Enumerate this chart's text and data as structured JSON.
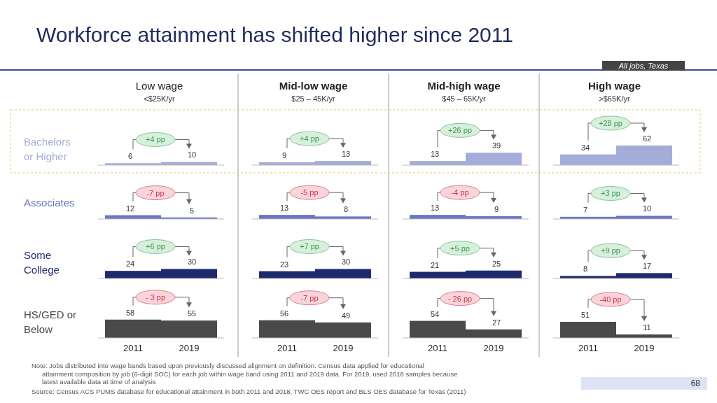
{
  "chart_data": [
    {
      "type": "other",
      "title": "Workforce attainment has shifted higher since 2011",
      "annotations": [
        "All jobs, Texas",
        "Note: Jobs distributed into wage bands based upon previously discussed alignment on definition. Census data applied for educational attainment composition by job (6-digit SOC) for each job within wage band using 2011 and 2019 data. For 2019, used 2018 samples because latest available data at time of analysis",
        "Source: Census ACS PUMS database for educational attainment in both 2011 and 2018, TWC OES report and BLS OES database for Texas (2011)",
        "68"
      ]
    },
    {
      "type": "bar",
      "title": "Low wage",
      "subtitle": "<$25K/yr",
      "ylabel": "Bachelors or Higher",
      "values": [
        6,
        10
      ],
      "color": "#a4acda",
      "data_labels": true,
      "annotations": [
        "+4 pp"
      ]
    },
    {
      "type": "bar",
      "title": "Mid-low wage",
      "subtitle": "$25 – 45K/yr",
      "values": [
        9,
        13
      ],
      "color": "#a4acda",
      "data_labels": true,
      "annotations": [
        "+4 pp"
      ]
    },
    {
      "type": "bar",
      "title": "Mid-high wage",
      "subtitle": "$45 – 65K/yr",
      "values": [
        13,
        39
      ],
      "color": "#a4acda",
      "data_labels": true,
      "annotations": [
        "+26 pp"
      ]
    },
    {
      "type": "bar",
      "title": "High wage",
      "subtitle": ">$65K/yr",
      "values": [
        34,
        62
      ],
      "color": "#a4acda",
      "data_labels": true,
      "annotations": [
        "+28 pp"
      ]
    },
    {
      "type": "bar",
      "ylabel": "Associates",
      "values": [
        12,
        5
      ],
      "color": "#6b77c3",
      "data_labels": true,
      "annotations": [
        "-7 pp"
      ]
    },
    {
      "type": "bar",
      "values": [
        13,
        8
      ],
      "color": "#6b77c3",
      "data_labels": true,
      "annotations": [
        "-5 pp"
      ]
    },
    {
      "type": "bar",
      "values": [
        13,
        9
      ],
      "color": "#6b77c3",
      "data_labels": true,
      "annotations": [
        "-4 pp"
      ]
    },
    {
      "type": "bar",
      "values": [
        7,
        10
      ],
      "color": "#6b77c3",
      "data_labels": true,
      "annotations": [
        "+3 pp"
      ]
    },
    {
      "type": "bar",
      "ylabel": "Some College",
      "values": [
        24,
        30
      ],
      "color": "#1f2a6e",
      "data_labels": true,
      "annotations": [
        "+6 pp"
      ]
    },
    {
      "type": "bar",
      "values": [
        23,
        30
      ],
      "color": "#1f2a6e",
      "data_labels": true,
      "annotations": [
        "+7 pp"
      ]
    },
    {
      "type": "bar",
      "values": [
        21,
        25
      ],
      "color": "#1f2a6e",
      "data_labels": true,
      "annotations": [
        "+5 pp"
      ]
    },
    {
      "type": "bar",
      "values": [
        8,
        17
      ],
      "color": "#1f2a6e",
      "data_labels": true,
      "annotations": [
        "+9 pp"
      ]
    },
    {
      "type": "bar",
      "ylabel": "HS/GED or Below",
      "categories": [
        "2011",
        "2019"
      ],
      "values": [
        58,
        55
      ],
      "color": "#4a4a4a",
      "data_labels": true,
      "annotations": [
        "- 3 pp"
      ]
    },
    {
      "type": "bar",
      "categories": [
        "2011",
        "2019"
      ],
      "values": [
        56,
        49
      ],
      "color": "#4a4a4a",
      "data_labels": true,
      "annotations": [
        "-7 pp"
      ]
    },
    {
      "type": "bar",
      "categories": [
        "2011",
        "2019"
      ],
      "values": [
        54,
        27
      ],
      "color": "#4a4a4a",
      "data_labels": true,
      "annotations": [
        "- 26 pp"
      ]
    },
    {
      "type": "bar",
      "categories": [
        "2011",
        "2019"
      ],
      "values": [
        51,
        11
      ],
      "color": "#4a4a4a",
      "data_labels": true,
      "annotations": [
        "-40 pp"
      ]
    }
  ]
}
